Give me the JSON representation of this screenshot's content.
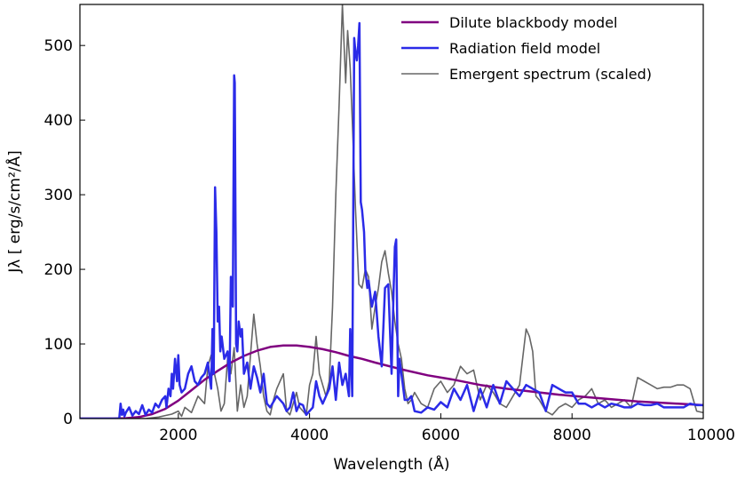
{
  "chart_data": {
    "type": "line",
    "xlabel": "Wavelength (Å)",
    "ylabel": "Jλ [ erg/s/cm²/Å]",
    "xlim": [
      500,
      10000
    ],
    "ylim": [
      0,
      555
    ],
    "xticks": [
      2000,
      4000,
      6000,
      8000,
      10000
    ],
    "yticks": [
      0,
      100,
      200,
      300,
      400,
      500
    ],
    "legend_position": "top-right",
    "grid": false,
    "series": [
      {
        "name": "Dilute blackbody model",
        "color": "#800080",
        "x": [
          500,
          1000,
          1200,
          1400,
          1600,
          1800,
          2000,
          2200,
          2400,
          2600,
          2800,
          3000,
          3200,
          3400,
          3600,
          3800,
          4000,
          4200,
          4400,
          4600,
          4800,
          5000,
          5400,
          5800,
          6200,
          6600,
          7000,
          7400,
          7800,
          8200,
          8600,
          9000,
          9400,
          9800,
          10000
        ],
        "y": [
          0,
          0,
          0.5,
          2,
          6,
          13,
          24,
          38,
          52,
          64,
          75,
          84,
          91,
          96,
          98,
          98,
          96,
          93,
          89,
          84,
          80,
          75,
          66,
          58,
          52,
          45,
          40,
          36,
          32,
          29,
          26,
          23,
          21,
          19,
          18
        ]
      },
      {
        "name": "Radiation field model",
        "color": "#2b2be8",
        "x": [
          500,
          1100,
          1120,
          1140,
          1160,
          1180,
          1200,
          1250,
          1300,
          1350,
          1400,
          1450,
          1500,
          1550,
          1600,
          1650,
          1700,
          1750,
          1800,
          1820,
          1850,
          1880,
          1900,
          1920,
          1950,
          1980,
          2000,
          2020,
          2050,
          2100,
          2150,
          2200,
          2250,
          2300,
          2350,
          2400,
          2450,
          2500,
          2520,
          2540,
          2560,
          2580,
          2600,
          2620,
          2640,
          2660,
          2700,
          2750,
          2780,
          2800,
          2830,
          2850,
          2860,
          2880,
          2900,
          2920,
          2950,
          2970,
          3000,
          3050,
          3100,
          3150,
          3200,
          3250,
          3300,
          3350,
          3400,
          3500,
          3600,
          3650,
          3700,
          3750,
          3800,
          3850,
          3900,
          3950,
          4000,
          4050,
          4100,
          4150,
          4200,
          4300,
          4350,
          4400,
          4450,
          4500,
          4550,
          4600,
          4620,
          4650,
          4680,
          4700,
          4720,
          4740,
          4760,
          4780,
          4800,
          4830,
          4850,
          4880,
          4900,
          4950,
          5000,
          5050,
          5100,
          5150,
          5200,
          5250,
          5280,
          5300,
          5320,
          5350,
          5370,
          5400,
          5450,
          5500,
          5550,
          5600,
          5700,
          5800,
          5900,
          6000,
          6100,
          6200,
          6300,
          6400,
          6500,
          6600,
          6700,
          6800,
          6900,
          7000,
          7100,
          7200,
          7300,
          7400,
          7500,
          7600,
          7700,
          7800,
          7900,
          8000,
          8100,
          8200,
          8300,
          8400,
          8500,
          8600,
          8700,
          8800,
          8900,
          9000,
          9100,
          9200,
          9300,
          9400,
          9500,
          9600,
          9700,
          9800,
          9900,
          10000
        ],
        "y": [
          0,
          0,
          20,
          5,
          12,
          3,
          8,
          15,
          4,
          10,
          6,
          18,
          5,
          12,
          8,
          20,
          15,
          25,
          30,
          15,
          40,
          30,
          60,
          40,
          80,
          50,
          85,
          45,
          35,
          40,
          60,
          70,
          50,
          45,
          55,
          60,
          75,
          40,
          120,
          60,
          310,
          250,
          130,
          150,
          90,
          110,
          80,
          90,
          50,
          190,
          150,
          460,
          450,
          100,
          90,
          130,
          110,
          120,
          60,
          75,
          40,
          70,
          55,
          35,
          60,
          20,
          15,
          30,
          20,
          10,
          15,
          35,
          10,
          20,
          18,
          5,
          10,
          15,
          50,
          30,
          20,
          40,
          70,
          25,
          75,
          45,
          60,
          30,
          120,
          30,
          510,
          490,
          480,
          500,
          530,
          290,
          280,
          250,
          200,
          175,
          185,
          150,
          170,
          110,
          70,
          175,
          180,
          60,
          170,
          230,
          240,
          30,
          80,
          60,
          25,
          25,
          30,
          10,
          8,
          15,
          12,
          22,
          15,
          40,
          25,
          45,
          10,
          40,
          15,
          45,
          20,
          50,
          40,
          30,
          45,
          40,
          35,
          10,
          45,
          40,
          35,
          35,
          20,
          20,
          15,
          20,
          15,
          20,
          18,
          15,
          15,
          20,
          18,
          18,
          20,
          15,
          15,
          15,
          15,
          20,
          18,
          18
        ]
      },
      {
        "name": "Emergent spectrum (scaled)",
        "color": "#666666",
        "x": [
          500,
          1500,
          1600,
          1700,
          1800,
          1900,
          2000,
          2050,
          2100,
          2200,
          2300,
          2400,
          2450,
          2500,
          2550,
          2600,
          2650,
          2700,
          2750,
          2800,
          2850,
          2900,
          2950,
          3000,
          3050,
          3100,
          3150,
          3200,
          3250,
          3300,
          3350,
          3400,
          3450,
          3500,
          3550,
          3600,
          3650,
          3700,
          3750,
          3800,
          3850,
          3900,
          3950,
          4000,
          4050,
          4100,
          4150,
          4200,
          4250,
          4300,
          4350,
          4400,
          4450,
          4500,
          4550,
          4580,
          4620,
          4650,
          4700,
          4750,
          4800,
          4850,
          4900,
          4950,
          5000,
          5050,
          5100,
          5150,
          5200,
          5250,
          5300,
          5350,
          5400,
          5450,
          5500,
          5550,
          5600,
          5700,
          5800,
          5900,
          6000,
          6100,
          6200,
          6300,
          6400,
          6500,
          6600,
          6700,
          6800,
          6900,
          7000,
          7100,
          7200,
          7300,
          7350,
          7400,
          7450,
          7500,
          7600,
          7700,
          7800,
          7900,
          8000,
          8100,
          8200,
          8300,
          8400,
          8500,
          8600,
          8700,
          8800,
          8900,
          9000,
          9100,
          9200,
          9300,
          9400,
          9500,
          9600,
          9700,
          9800,
          9900,
          10000
        ],
        "y": [
          0,
          0,
          1,
          2,
          4,
          6,
          10,
          3,
          15,
          8,
          30,
          20,
          70,
          85,
          60,
          40,
          10,
          20,
          80,
          60,
          95,
          10,
          45,
          15,
          30,
          85,
          140,
          100,
          70,
          30,
          10,
          5,
          25,
          40,
          50,
          60,
          10,
          5,
          20,
          35,
          15,
          10,
          5,
          45,
          60,
          110,
          60,
          45,
          30,
          50,
          150,
          300,
          420,
          555,
          450,
          520,
          470,
          400,
          280,
          180,
          175,
          200,
          190,
          120,
          150,
          175,
          210,
          225,
          195,
          170,
          130,
          100,
          80,
          40,
          20,
          25,
          35,
          20,
          15,
          40,
          50,
          35,
          45,
          70,
          60,
          65,
          25,
          45,
          35,
          20,
          15,
          30,
          45,
          120,
          110,
          90,
          30,
          25,
          10,
          5,
          15,
          20,
          15,
          25,
          30,
          40,
          20,
          25,
          15,
          20,
          25,
          15,
          55,
          50,
          45,
          40,
          42,
          42,
          45,
          45,
          40,
          10,
          8
        ]
      }
    ]
  }
}
